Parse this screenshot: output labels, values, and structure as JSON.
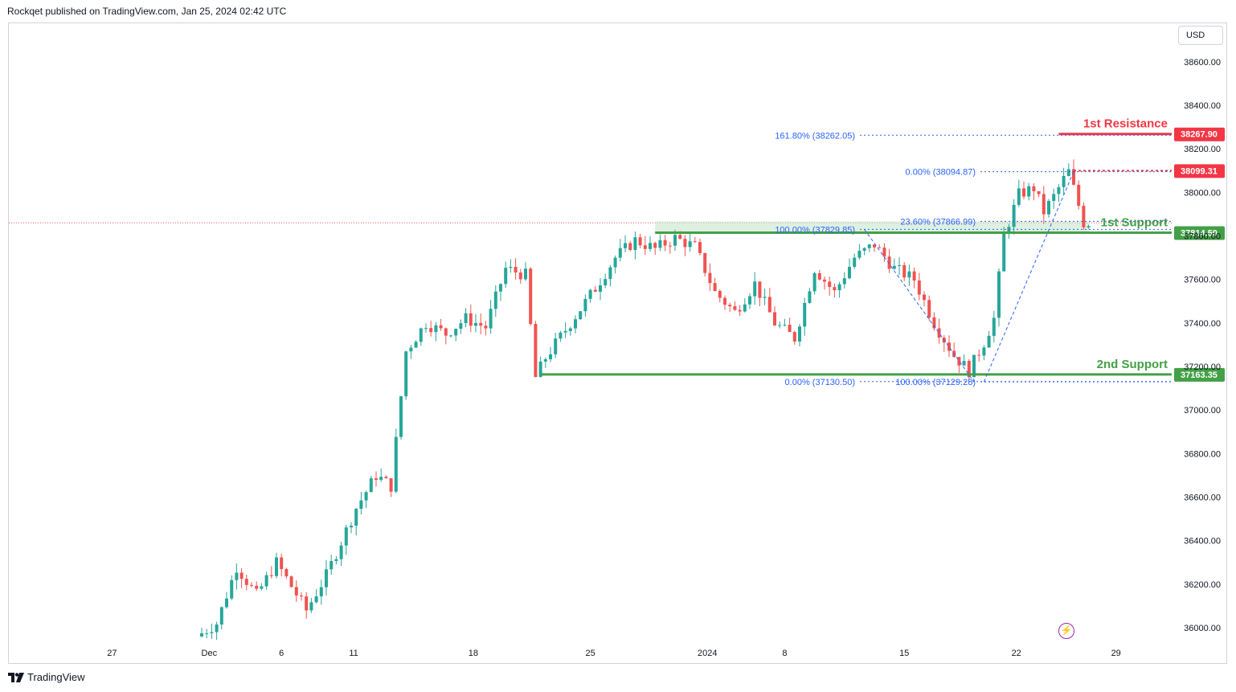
{
  "header": {
    "published_text": "Rockqet published on TradingView.com, Jan 25, 2024 02:42 UTC"
  },
  "toolbar": {
    "currency": "USD"
  },
  "footer": {
    "brand": "TradingView"
  },
  "icons": {
    "replay": "lightning-icon",
    "brand": "tradingview-logo-icon"
  },
  "colors": {
    "up": "#26a69a",
    "down": "#ef5350",
    "resistance": "#f23645",
    "support": "#43a047",
    "fib": "#2962ff",
    "zone": "#c8e6c9"
  },
  "chart_data": {
    "type": "candlestick",
    "ylim": [
      35930,
      38780
    ],
    "y_ticks": [
      "38600.00",
      "38400.00",
      "38200.00",
      "38000.00",
      "37800.00",
      "37600.00",
      "37400.00",
      "37200.00",
      "37000.00",
      "36800.00",
      "36600.00",
      "36400.00",
      "36200.00",
      "36000.00"
    ],
    "x_ticks": [
      "27",
      "Dec",
      "6",
      "11",
      "18",
      "25",
      "2024",
      "8",
      "15",
      "22",
      "29"
    ],
    "levels": [
      {
        "label": "1st Resistance",
        "price": "38267.90",
        "value": 38267.9,
        "color": "#f23645"
      },
      {
        "label": "",
        "price": "38099.31",
        "value": 38099.31,
        "color": "#f23645"
      },
      {
        "label": "1st Support",
        "price": "37814.50",
        "value": 37814.5,
        "color": "#43a047"
      },
      {
        "label": "2nd Support",
        "price": "37163.35",
        "value": 37163.35,
        "color": "#43a047"
      }
    ],
    "fib_labels": [
      {
        "text": "161.80% (38262.05)",
        "value": 38262.05
      },
      {
        "text": "0.00% (38094.87)",
        "value": 38094.87
      },
      {
        "text": "23.60% (37866.99)",
        "value": 37866.99
      },
      {
        "text": "100.00% (37829.85)",
        "value": 37829.85
      },
      {
        "text": "0.00% (37130.50)",
        "value": 37130.5
      },
      {
        "text": "100.00% (37129.28)",
        "value": 37129.28
      }
    ],
    "anchors": [
      [
        0,
        35960
      ],
      [
        4,
        36020
      ],
      [
        8,
        36280
      ],
      [
        12,
        36150
      ],
      [
        16,
        36300
      ],
      [
        22,
        36080
      ],
      [
        26,
        36240
      ],
      [
        32,
        36550
      ],
      [
        36,
        36700
      ],
      [
        39,
        36650
      ],
      [
        42,
        37270
      ],
      [
        46,
        37400
      ],
      [
        50,
        37350
      ],
      [
        54,
        37420
      ],
      [
        58,
        37380
      ],
      [
        62,
        37650
      ],
      [
        66,
        37620
      ],
      [
        68,
        37150
      ],
      [
        70,
        37240
      ],
      [
        75,
        37400
      ],
      [
        80,
        37560
      ],
      [
        84,
        37700
      ],
      [
        88,
        37780
      ],
      [
        92,
        37740
      ],
      [
        96,
        37790
      ],
      [
        100,
        37750
      ],
      [
        104,
        37540
      ],
      [
        108,
        37450
      ],
      [
        112,
        37580
      ],
      [
        116,
        37400
      ],
      [
        120,
        37330
      ],
      [
        124,
        37650
      ],
      [
        128,
        37540
      ],
      [
        132,
        37700
      ],
      [
        136,
        37760
      ],
      [
        140,
        37650
      ],
      [
        144,
        37600
      ],
      [
        148,
        37400
      ],
      [
        152,
        37250
      ],
      [
        155,
        37180
      ],
      [
        158,
        37310
      ],
      [
        160,
        37420
      ],
      [
        162,
        37800
      ],
      [
        165,
        37990
      ],
      [
        168,
        38020
      ],
      [
        170,
        37910
      ],
      [
        172,
        37980
      ],
      [
        174,
        38060
      ],
      [
        175,
        38095
      ],
      [
        177,
        37940
      ],
      [
        178,
        37860
      ]
    ]
  }
}
